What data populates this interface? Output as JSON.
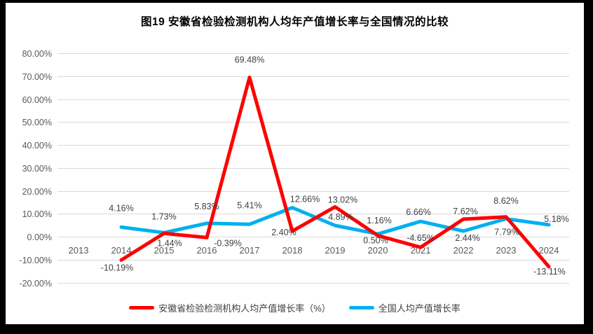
{
  "chart_data": {
    "type": "line",
    "title": "图19 安徽省检验检测机构人均年产值增长率与全国情况的比较",
    "categories": [
      "2013",
      "2014",
      "2015",
      "2016",
      "2017",
      "2018",
      "2019",
      "2020",
      "2021",
      "2022",
      "2023",
      "2024"
    ],
    "ylim": [
      -20,
      80
    ],
    "ytick_step": 10,
    "yticks": [
      "80.00%",
      "70.00%",
      "60.00%",
      "50.00%",
      "40.00%",
      "30.00%",
      "20.00%",
      "10.00%",
      "0.00%",
      "-10.00%",
      "-20.00%"
    ],
    "grid": true,
    "legend_position": "bottom",
    "axis_label_color": "#595959",
    "data_label_color": "#404040",
    "gridline_color": "#D9D9D9",
    "series": [
      {
        "name": "安徽省检验检测机构人均产值增长率（%）",
        "color": "#FF0000",
        "values": [
          null,
          -10.19,
          1.44,
          -0.39,
          69.48,
          2.4,
          13.02,
          0.5,
          -4.65,
          7.62,
          8.62,
          -13.11
        ],
        "labels": [
          "",
          "-10.19%",
          "1.44%",
          "-0.39%",
          "69.48%",
          "2.40%",
          "13.02%",
          "0.50%",
          "-4.65%",
          "7.62%",
          "8.62%",
          "-13.11%"
        ],
        "label_offsets": [
          [
            0,
            0
          ],
          [
            -6,
            15
          ],
          [
            8,
            18
          ],
          [
            30,
            12
          ],
          [
            0,
            -21
          ],
          [
            -12,
            6
          ],
          [
            11,
            -6
          ],
          [
            -3,
            11
          ],
          [
            0,
            -9
          ],
          [
            3,
            -7
          ],
          [
            0,
            -19
          ],
          [
            1,
            11
          ]
        ]
      },
      {
        "name": "全国人均产值增长率",
        "color": "#00B0F0",
        "values": [
          null,
          4.16,
          1.73,
          5.83,
          5.41,
          12.66,
          4.89,
          1.16,
          6.66,
          2.44,
          7.79,
          5.18
        ],
        "labels": [
          "",
          "4.16%",
          "1.73%",
          "5.83%",
          "5.41%",
          "12.66%",
          "4.89%",
          "1.16%",
          "6.66%",
          "2.44%",
          "7.79%",
          "5.18%"
        ],
        "label_offsets": [
          [
            0,
            0
          ],
          [
            0,
            -23
          ],
          [
            0,
            -19
          ],
          [
            0,
            -20
          ],
          [
            0,
            -23
          ],
          [
            18,
            -8
          ],
          [
            8,
            -8
          ],
          [
            2,
            -15
          ],
          [
            -3,
            -9
          ],
          [
            6,
            14
          ],
          [
            1,
            23
          ],
          [
            11,
            -4
          ]
        ]
      }
    ]
  }
}
